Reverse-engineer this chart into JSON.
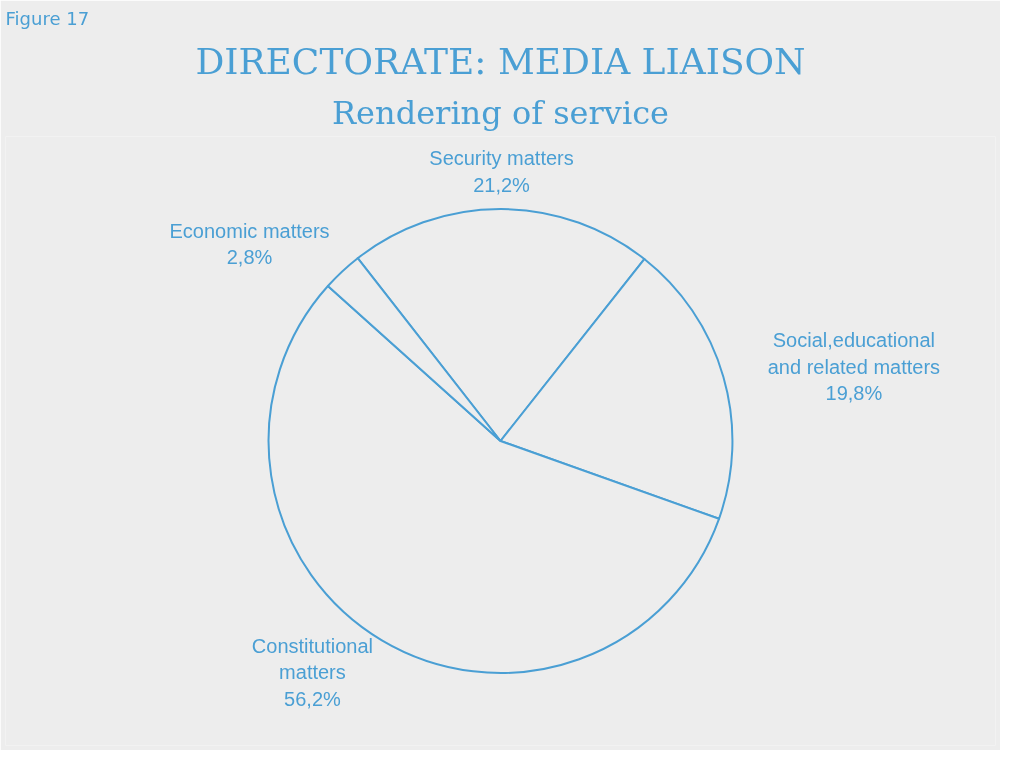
{
  "chart_data": {
    "type": "pie",
    "title": "DIRECTORATE: MEDIA LIAISON",
    "subtitle": "Rendering of service",
    "annotations": [
      "Figure 17"
    ],
    "categories": [
      "Security matters",
      "Social,educational and related matters",
      "Constitutional matters",
      "Economic matters"
    ],
    "values": [
      21.2,
      19.8,
      56.2,
      2.8
    ],
    "value_labels": [
      "21,2%",
      "19,8%",
      "56,2%",
      "2,8%"
    ],
    "colors": [
      "#ededed",
      "#ededed",
      "#ededed",
      "#ededed"
    ]
  }
}
